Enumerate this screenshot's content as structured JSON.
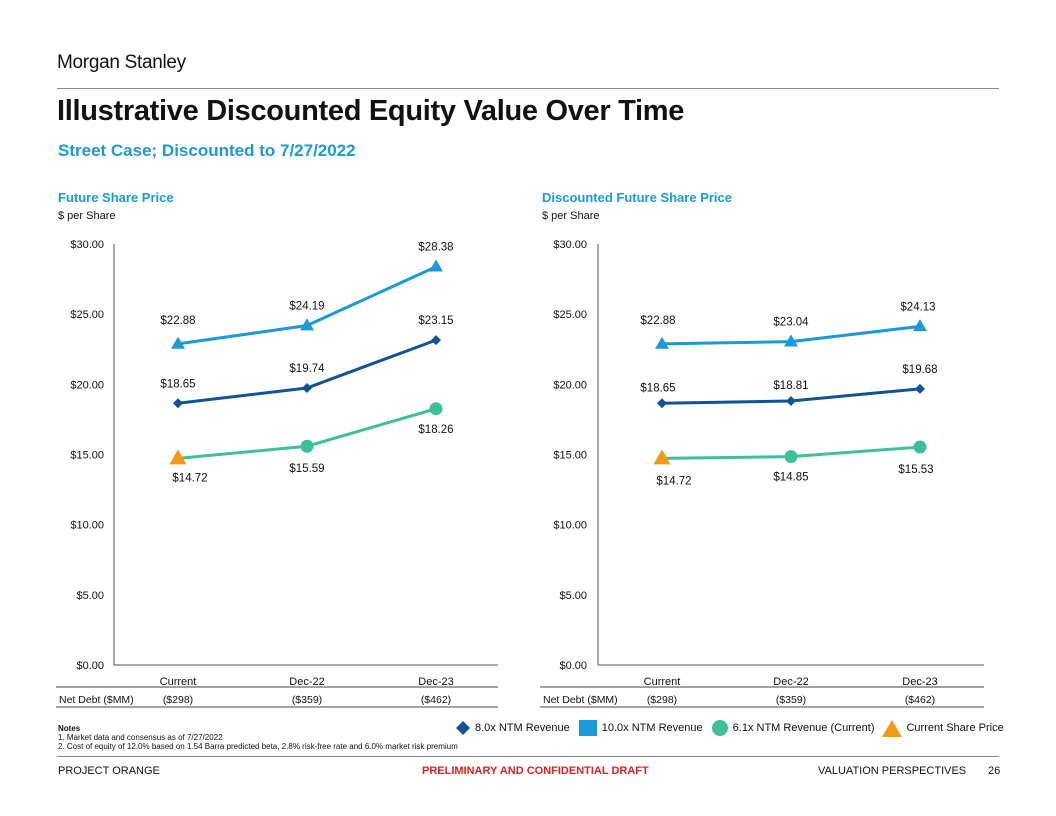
{
  "brand": "Morgan Stanley",
  "title": "Illustrative Discounted Equity Value Over Time",
  "subtitle": "Street Case; Discounted to 7/27/2022",
  "colors": {
    "accent": "#1a9ad6",
    "ntm_8x": "#0f5499",
    "ntm_10x": "#1a9ad6",
    "ntm_6_1x": "#3fbf99",
    "current_price": "#f29a17",
    "draft_red": "#e02020"
  },
  "legend": [
    {
      "label": "8.0x NTM Revenue",
      "marker": "diamond",
      "color": "#0f5499"
    },
    {
      "label": "10.0x NTM Revenue",
      "marker": "square",
      "color": "#1a9ad6"
    },
    {
      "label": "6.1x NTM Revenue (Current)",
      "marker": "circle",
      "color": "#3fbf99"
    },
    {
      "label": "Current Share Price",
      "marker": "triangle",
      "color": "#f29a17"
    }
  ],
  "notes": {
    "title": "Notes",
    "items": [
      "1.  Market data and consensus as of 7/27/2022",
      "2.  Cost of equity of 12.0% based on 1.54 Barra predicted beta, 2.8% risk-free rate and 6.0% market risk premium"
    ]
  },
  "footer": {
    "left": "PROJECT ORANGE",
    "center": "PRELIMINARY AND CONFIDENTIAL DRAFT",
    "section": "VALUATION PERSPECTIVES",
    "page": "26"
  },
  "chart_data": [
    {
      "type": "line",
      "title": "Future Share Price",
      "ylabel": "$ per Share",
      "categories": [
        "Current",
        "Dec-22",
        "Dec-23"
      ],
      "ylim": [
        0,
        30
      ],
      "yticks": [
        0,
        5,
        10,
        15,
        20,
        25,
        30
      ],
      "ytick_labels": [
        "$0.00",
        "$5.00",
        "$10.00",
        "$15.00",
        "$20.00",
        "$25.00",
        "$30.00"
      ],
      "series": [
        {
          "name": "10.0x NTM Revenue",
          "color": "#1a9ad6",
          "values": [
            22.88,
            24.19,
            28.38
          ],
          "labels": [
            "$22.88",
            "$24.19",
            "$28.38"
          ],
          "markers": [
            "triangle",
            "triangle",
            "triangle"
          ]
        },
        {
          "name": "8.0x NTM Revenue",
          "color": "#0f5499",
          "values": [
            18.65,
            19.74,
            23.15
          ],
          "labels": [
            "$18.65",
            "$19.74",
            "$23.15"
          ],
          "markers": [
            "diamond",
            "diamond",
            "diamond"
          ]
        },
        {
          "name": "6.1x NTM Revenue (Current)",
          "color": "#3fbf99",
          "values": [
            14.72,
            15.59,
            18.26
          ],
          "labels": [
            "$14.72",
            "$15.59",
            "$18.26"
          ],
          "markers": [
            "triangle-orange",
            "circle",
            "circle"
          ]
        }
      ],
      "net_debt": {
        "label": "Net Debt ($MM)",
        "values": [
          "($298)",
          "($359)",
          "($462)"
        ]
      }
    },
    {
      "type": "line",
      "title": "Discounted Future Share Price",
      "ylabel": "$ per Share",
      "categories": [
        "Current",
        "Dec-22",
        "Dec-23"
      ],
      "ylim": [
        0,
        30
      ],
      "yticks": [
        0,
        5,
        10,
        15,
        20,
        25,
        30
      ],
      "ytick_labels": [
        "$0.00",
        "$5.00",
        "$10.00",
        "$15.00",
        "$20.00",
        "$25.00",
        "$30.00"
      ],
      "series": [
        {
          "name": "10.0x NTM Revenue",
          "color": "#1a9ad6",
          "values": [
            22.88,
            23.04,
            24.13
          ],
          "labels": [
            "$22.88",
            "$23.04",
            "$24.13"
          ],
          "markers": [
            "triangle",
            "triangle",
            "triangle"
          ]
        },
        {
          "name": "8.0x NTM Revenue",
          "color": "#0f5499",
          "values": [
            18.65,
            18.81,
            19.68
          ],
          "labels": [
            "$18.65",
            "$18.81",
            "$19.68"
          ],
          "markers": [
            "diamond",
            "diamond",
            "diamond"
          ]
        },
        {
          "name": "6.1x NTM Revenue (Current)",
          "color": "#3fbf99",
          "values": [
            14.72,
            14.85,
            15.53
          ],
          "labels": [
            "$14.72",
            "$14.85",
            "$15.53"
          ],
          "markers": [
            "triangle-orange",
            "circle",
            "circle"
          ]
        }
      ],
      "net_debt": {
        "label": "Net Debt ($MM)",
        "values": [
          "($298)",
          "($359)",
          "($462)"
        ]
      }
    }
  ]
}
